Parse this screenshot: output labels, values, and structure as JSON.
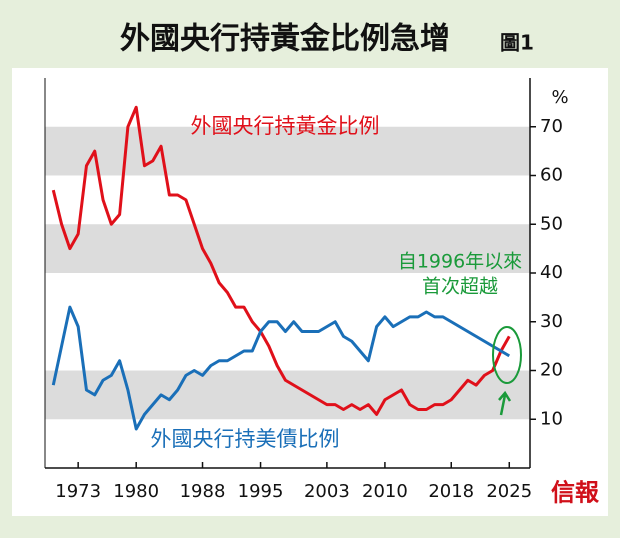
{
  "chart_data": {
    "type": "line",
    "title": "外國央行持黃金比例急增",
    "figure_label": "圖1",
    "y_unit": "%",
    "x": [
      1970,
      1971,
      1972,
      1973,
      1974,
      1975,
      1976,
      1977,
      1978,
      1979,
      1980,
      1981,
      1982,
      1983,
      1984,
      1985,
      1986,
      1987,
      1988,
      1989,
      1990,
      1991,
      1992,
      1993,
      1994,
      1995,
      1996,
      1997,
      1998,
      1999,
      2000,
      2001,
      2002,
      2003,
      2004,
      2005,
      2006,
      2007,
      2008,
      2009,
      2010,
      2011,
      2012,
      2013,
      2014,
      2015,
      2016,
      2017,
      2018,
      2019,
      2020,
      2021,
      2022,
      2023,
      2024,
      2025
    ],
    "series": [
      {
        "name": "外國央行持黃金比例",
        "color": "#e0101a",
        "values": [
          57,
          50,
          45,
          48,
          62,
          65,
          55,
          50,
          52,
          70,
          74,
          62,
          63,
          66,
          56,
          56,
          55,
          50,
          45,
          42,
          38,
          36,
          33,
          33,
          30,
          28,
          25,
          21,
          18,
          17,
          16,
          15,
          14,
          13,
          13,
          12,
          13,
          12,
          13,
          11,
          14,
          15,
          16,
          13,
          12,
          12,
          13,
          13,
          14,
          16,
          18,
          17,
          19,
          20,
          24,
          27
        ]
      },
      {
        "name": "外國央行持美債比例",
        "color": "#1a6fb8",
        "values": [
          17,
          25,
          33,
          29,
          16,
          15,
          18,
          19,
          22,
          16,
          8,
          11,
          13,
          15,
          14,
          16,
          19,
          20,
          19,
          21,
          22,
          22,
          23,
          24,
          24,
          28,
          30,
          30,
          28,
          30,
          28,
          28,
          28,
          29,
          30,
          27,
          26,
          24,
          22,
          29,
          31,
          29,
          30,
          31,
          31,
          32,
          31,
          31,
          30,
          29,
          28,
          27,
          26,
          25,
          24,
          23
        ]
      }
    ],
    "annotation": [
      "自1996年以來",
      "首次超越"
    ],
    "source": "信報",
    "xlim": [
      1969,
      2027.5
    ],
    "xticks": [
      1973,
      1980,
      1988,
      1995,
      2003,
      2010,
      2018,
      2025
    ],
    "ylim": [
      0,
      80
    ],
    "yticks": [
      10,
      20,
      30,
      40,
      50,
      60,
      70
    ]
  }
}
